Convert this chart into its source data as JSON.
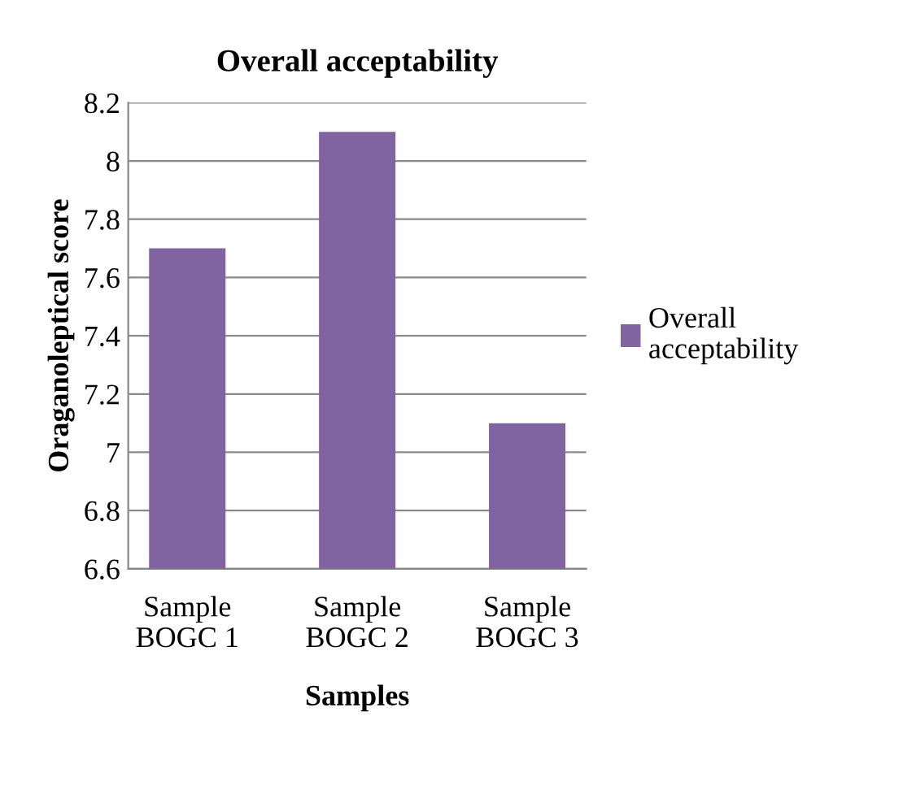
{
  "chart_data": {
    "type": "bar",
    "title": "Overall acceptability",
    "xlabel": "Samples",
    "ylabel": "Oraganoleptical score",
    "categories": [
      "Sample BOGC 1",
      "Sample BOGC 2",
      "Sample BOGC 3"
    ],
    "series": [
      {
        "name": "Overall acceptability",
        "color": "#8064a2",
        "values": [
          7.7,
          8.1,
          7.1
        ]
      }
    ],
    "ylim": [
      6.6,
      8.2
    ],
    "yticks": [
      6.6,
      6.8,
      7,
      7.2,
      7.4,
      7.6,
      7.8,
      8,
      8.2
    ],
    "grid": "y",
    "legend": "right"
  }
}
